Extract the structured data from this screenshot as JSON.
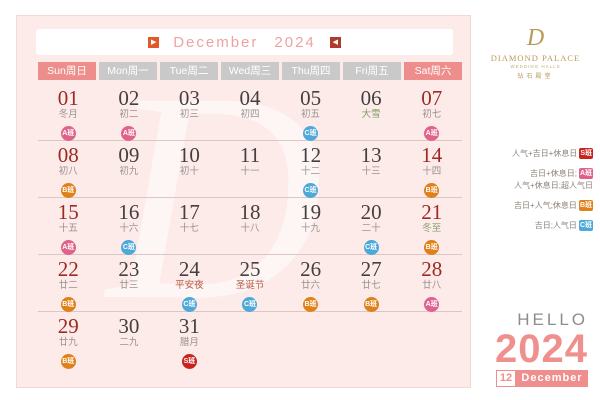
{
  "calendar": {
    "title": {
      "month": "December",
      "year": "2024",
      "prev_icon": "▶",
      "next_icon": "◀"
    },
    "weekday_headers": [
      {
        "label": "Sun周日",
        "weekend": true
      },
      {
        "label": "Mon周一",
        "weekend": false
      },
      {
        "label": "Tue周二",
        "weekend": false
      },
      {
        "label": "Wed周三",
        "weekend": false
      },
      {
        "label": "Thu周四",
        "weekend": false
      },
      {
        "label": "Fri周五",
        "weekend": false
      },
      {
        "label": "Sat周六",
        "weekend": true
      }
    ],
    "weeks": [
      [
        {
          "day": "01",
          "lunar": "冬月",
          "lunar_type": "normal",
          "badge": "A班",
          "badge_type": "a",
          "weekend": true
        },
        {
          "day": "02",
          "lunar": "初二",
          "lunar_type": "normal",
          "badge": "A班",
          "badge_type": "a",
          "weekend": false
        },
        {
          "day": "03",
          "lunar": "初三",
          "lunar_type": "normal",
          "badge": null,
          "badge_type": null,
          "weekend": false
        },
        {
          "day": "04",
          "lunar": "初四",
          "lunar_type": "normal",
          "badge": null,
          "badge_type": null,
          "weekend": false
        },
        {
          "day": "05",
          "lunar": "初五",
          "lunar_type": "normal",
          "badge": "C班",
          "badge_type": "c",
          "weekend": false
        },
        {
          "day": "06",
          "lunar": "大雪",
          "lunar_type": "term",
          "badge": null,
          "badge_type": null,
          "weekend": false
        },
        {
          "day": "07",
          "lunar": "初七",
          "lunar_type": "normal",
          "badge": "A班",
          "badge_type": "a",
          "weekend": true
        }
      ],
      [
        {
          "day": "08",
          "lunar": "初八",
          "lunar_type": "normal",
          "badge": "B班",
          "badge_type": "b",
          "weekend": true
        },
        {
          "day": "09",
          "lunar": "初九",
          "lunar_type": "normal",
          "badge": null,
          "badge_type": null,
          "weekend": false
        },
        {
          "day": "10",
          "lunar": "初十",
          "lunar_type": "normal",
          "badge": null,
          "badge_type": null,
          "weekend": false
        },
        {
          "day": "11",
          "lunar": "十一",
          "lunar_type": "normal",
          "badge": null,
          "badge_type": null,
          "weekend": false
        },
        {
          "day": "12",
          "lunar": "十二",
          "lunar_type": "normal",
          "badge": "C班",
          "badge_type": "c",
          "weekend": false
        },
        {
          "day": "13",
          "lunar": "十三",
          "lunar_type": "normal",
          "badge": null,
          "badge_type": null,
          "weekend": false
        },
        {
          "day": "14",
          "lunar": "十四",
          "lunar_type": "normal",
          "badge": "B班",
          "badge_type": "b",
          "weekend": true
        }
      ],
      [
        {
          "day": "15",
          "lunar": "十五",
          "lunar_type": "normal",
          "badge": "A班",
          "badge_type": "a",
          "weekend": true
        },
        {
          "day": "16",
          "lunar": "十六",
          "lunar_type": "normal",
          "badge": "C班",
          "badge_type": "c",
          "weekend": false
        },
        {
          "day": "17",
          "lunar": "十七",
          "lunar_type": "normal",
          "badge": null,
          "badge_type": null,
          "weekend": false
        },
        {
          "day": "18",
          "lunar": "十八",
          "lunar_type": "normal",
          "badge": null,
          "badge_type": null,
          "weekend": false
        },
        {
          "day": "19",
          "lunar": "十九",
          "lunar_type": "normal",
          "badge": null,
          "badge_type": null,
          "weekend": false
        },
        {
          "day": "20",
          "lunar": "二十",
          "lunar_type": "normal",
          "badge": "C班",
          "badge_type": "c",
          "weekend": false
        },
        {
          "day": "21",
          "lunar": "冬至",
          "lunar_type": "term",
          "badge": "B班",
          "badge_type": "b",
          "weekend": true
        }
      ],
      [
        {
          "day": "22",
          "lunar": "廿二",
          "lunar_type": "normal",
          "badge": "B班",
          "badge_type": "b",
          "weekend": true
        },
        {
          "day": "23",
          "lunar": "廿三",
          "lunar_type": "normal",
          "badge": null,
          "badge_type": null,
          "weekend": false
        },
        {
          "day": "24",
          "lunar": "平安夜",
          "lunar_type": "festival",
          "badge": "C班",
          "badge_type": "c",
          "weekend": false
        },
        {
          "day": "25",
          "lunar": "圣诞节",
          "lunar_type": "festival",
          "badge": "C班",
          "badge_type": "c",
          "weekend": false
        },
        {
          "day": "26",
          "lunar": "廿六",
          "lunar_type": "normal",
          "badge": "B班",
          "badge_type": "b",
          "weekend": false
        },
        {
          "day": "27",
          "lunar": "廿七",
          "lunar_type": "normal",
          "badge": "B班",
          "badge_type": "b",
          "weekend": false
        },
        {
          "day": "28",
          "lunar": "廿八",
          "lunar_type": "normal",
          "badge": "A班",
          "badge_type": "a",
          "weekend": true
        }
      ],
      [
        {
          "day": "29",
          "lunar": "廿九",
          "lunar_type": "normal",
          "badge": "B班",
          "badge_type": "b",
          "weekend": true
        },
        {
          "day": "30",
          "lunar": "二九",
          "lunar_type": "normal",
          "badge": null,
          "badge_type": null,
          "weekend": false
        },
        {
          "day": "31",
          "lunar": "腊月",
          "lunar_type": "normal",
          "badge": "S班",
          "badge_type": "s",
          "weekend": false
        }
      ]
    ]
  },
  "legend": {
    "items": [
      {
        "text": "人气+吉日+休息日",
        "badge": "S班",
        "badge_type": "s",
        "wrap": false
      },
      {
        "text": "吉日+休息日;",
        "badge": "A班",
        "badge_type": "a",
        "wrap": false
      },
      {
        "text": "人气+休息日;超人气日",
        "badge": null,
        "badge_type": null,
        "wrap": true
      },
      {
        "text": "吉日+人气;休息日",
        "badge": "B班",
        "badge_type": "b",
        "wrap": false
      },
      {
        "text": "吉日;人气日",
        "badge": "C班",
        "badge_type": "c",
        "wrap": false
      }
    ]
  },
  "brand": {
    "monogram": "D",
    "name": "DIAMOND PALACE",
    "subtitle": "WEDDING HALLS",
    "chinese": "钻石殿堂"
  },
  "footer": {
    "hello": "HELLO",
    "year": "2024",
    "ribbon_day": "12",
    "ribbon_month": "December"
  },
  "colors": {
    "panel_bg": "#fcebe9",
    "accent_pink": "#ef8e8c",
    "badge_a": "#e0628c",
    "badge_b": "#e08018",
    "badge_c": "#4da9d8",
    "badge_s": "#c9231d",
    "gold": "#b89a5a"
  }
}
